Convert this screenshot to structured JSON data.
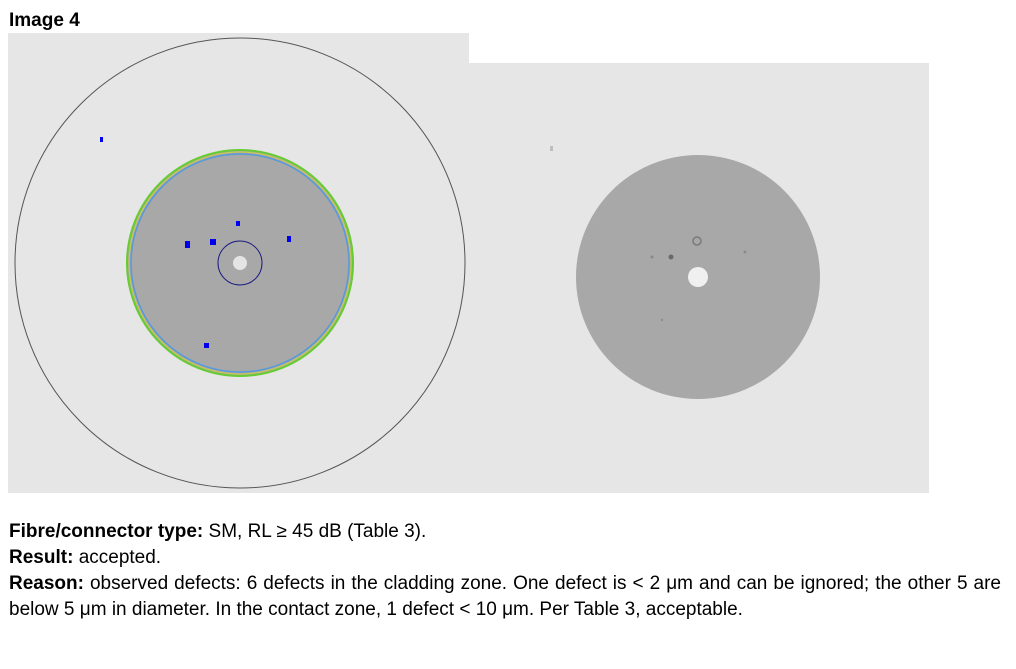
{
  "heading": "Image 4",
  "caption": {
    "type_label": "Fibre/connector type:",
    "type_value": "SM, RL ≥ 45 dB (Table 3).",
    "result_label": "Result:",
    "result_value": "accepted.",
    "reason_label": "Reason:",
    "reason_value": "observed defects: 6 defects in the cladding zone. One defect is < 2 μm and can be ignored; the other 5 are below 5 μm in diameter. In the contact zone, 1 defect < 10 μm. Per Table 3, acceptable."
  },
  "colors": {
    "background": "#e6e6e6",
    "cladding": "#a8a8a8",
    "zone_green": "#66cc33",
    "zone_blue": "#5599dd",
    "defect_marker": "#0000ee",
    "core_ring": "#1a1a80"
  }
}
